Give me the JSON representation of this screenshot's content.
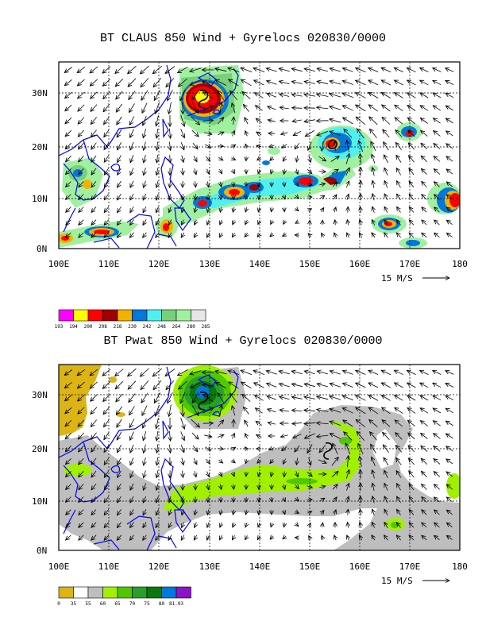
{
  "panels": [
    {
      "title": "BT CLAUS 850 Wind + Gyrelocs 020830/0000",
      "lat_labels": [
        "30N",
        "20N",
        "10N",
        "0N"
      ],
      "lon_labels": [
        "100E",
        "110E",
        "120E",
        "130E",
        "140E",
        "150E",
        "160E",
        "170E",
        "180"
      ],
      "scale_label": "15 M/S",
      "legend": {
        "labels": [
          "193",
          "194",
          "200",
          "208",
          "218",
          "230",
          "242",
          "248",
          "264",
          "280",
          "285"
        ],
        "colors": [
          "#ff00ff",
          "#ffff00",
          "#ff0000",
          "#a00000",
          "#f0b400",
          "#0078dc",
          "#50f0f0",
          "#7ad07a",
          "#a0f0a0",
          "#e6e6e6"
        ]
      }
    },
    {
      "title": "BT Pwat 850 Wind + Gyrelocs 020830/0000",
      "lat_labels": [
        "30N",
        "20N",
        "10N",
        "0N"
      ],
      "lon_labels": [
        "100E",
        "110E",
        "120E",
        "130E",
        "140E",
        "150E",
        "160E",
        "170E",
        "180"
      ],
      "scale_label": "15 M/S",
      "legend": {
        "labels": [
          "0",
          "35",
          "55",
          "60",
          "65",
          "70",
          "75",
          "80",
          "81.93"
        ],
        "colors": [
          "#dcb414",
          "#ffffff",
          "#bebebe",
          "#a0f000",
          "#50c800",
          "#28a028",
          "#0a780a",
          "#0078dc",
          "#8c14c8"
        ]
      }
    }
  ],
  "map_domain": {
    "lon_range": [
      100,
      180
    ],
    "lat_range": [
      0,
      36
    ]
  }
}
